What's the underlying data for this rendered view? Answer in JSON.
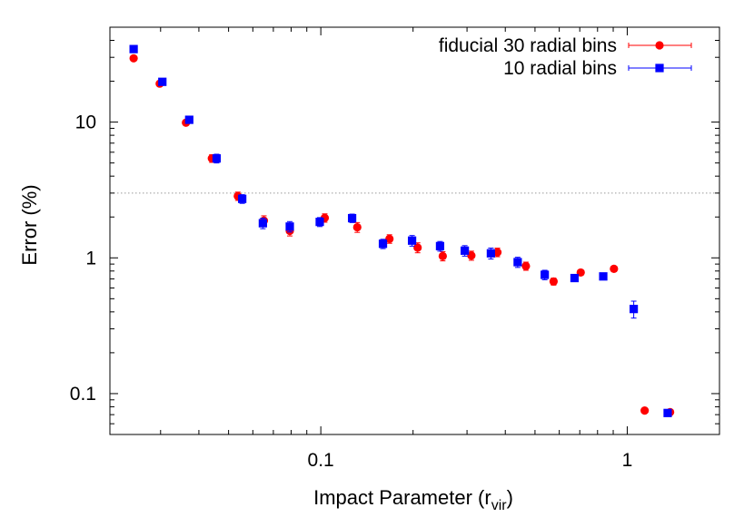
{
  "chart_data": {
    "type": "scatter",
    "xlabel": "Impact Parameter (r",
    "xlabel_sub": "vir",
    "xlabel_close": ")",
    "ylabel": "Error (%)",
    "x_scale": "log",
    "y_scale": "log",
    "xlim": [
      0.0205,
      2.0
    ],
    "ylim": [
      0.05,
      50
    ],
    "x_ticks": [
      {
        "value": 0.1,
        "label": "0.1"
      },
      {
        "value": 1,
        "label": "1"
      }
    ],
    "y_ticks": [
      {
        "value": 0.1,
        "label": "0.1"
      },
      {
        "value": 1,
        "label": "1"
      },
      {
        "value": 10,
        "label": "10"
      }
    ],
    "reference_line": {
      "y": 3.0,
      "style": "dotted",
      "color": "#999999"
    },
    "legend_position": "top-right",
    "grid": false,
    "series": [
      {
        "name": "fiducial 30 radial bins",
        "marker": "circle",
        "color": "#ff0000",
        "points": [
          {
            "x": 0.0245,
            "y": 29.5,
            "err": 0
          },
          {
            "x": 0.0298,
            "y": 19.2,
            "err": 0
          },
          {
            "x": 0.0363,
            "y": 9.9,
            "err": 0
          },
          {
            "x": 0.0441,
            "y": 5.4,
            "err": 0.35
          },
          {
            "x": 0.0536,
            "y": 2.85,
            "err": 0.2
          },
          {
            "x": 0.0652,
            "y": 1.88,
            "err": 0.16
          },
          {
            "x": 0.0792,
            "y": 1.58,
            "err": 0.13
          },
          {
            "x": 0.103,
            "y": 1.97,
            "err": 0.14
          },
          {
            "x": 0.1315,
            "y": 1.68,
            "err": 0.14
          },
          {
            "x": 0.1675,
            "y": 1.38,
            "err": 0.1
          },
          {
            "x": 0.207,
            "y": 1.19,
            "err": 0.1
          },
          {
            "x": 0.25,
            "y": 1.03,
            "err": 0.08
          },
          {
            "x": 0.31,
            "y": 1.04,
            "err": 0.08
          },
          {
            "x": 0.377,
            "y": 1.1,
            "err": 0.08
          },
          {
            "x": 0.467,
            "y": 0.87,
            "err": 0.06
          },
          {
            "x": 0.575,
            "y": 0.67,
            "err": 0.04
          },
          {
            "x": 0.705,
            "y": 0.78,
            "err": 0.03
          },
          {
            "x": 0.905,
            "y": 0.83,
            "err": 0
          },
          {
            "x": 1.14,
            "y": 0.075,
            "err": 0
          },
          {
            "x": 1.38,
            "y": 0.073,
            "err": 0
          }
        ]
      },
      {
        "name": "10 radial bins",
        "marker": "square",
        "color": "#0000ff",
        "points": [
          {
            "x": 0.0245,
            "y": 34.5,
            "err": 0
          },
          {
            "x": 0.0304,
            "y": 19.8,
            "err": 0
          },
          {
            "x": 0.0372,
            "y": 10.4,
            "err": 0
          },
          {
            "x": 0.0457,
            "y": 5.4,
            "err": 0.4
          },
          {
            "x": 0.0554,
            "y": 2.72,
            "err": 0.2
          },
          {
            "x": 0.0647,
            "y": 1.8,
            "err": 0.16
          },
          {
            "x": 0.0792,
            "y": 1.7,
            "err": 0.15
          },
          {
            "x": 0.0992,
            "y": 1.84,
            "err": 0.14
          },
          {
            "x": 0.1265,
            "y": 1.96,
            "err": 0.14
          },
          {
            "x": 0.1595,
            "y": 1.27,
            "err": 0.1
          },
          {
            "x": 0.1985,
            "y": 1.34,
            "err": 0.12
          },
          {
            "x": 0.245,
            "y": 1.22,
            "err": 0.1
          },
          {
            "x": 0.295,
            "y": 1.13,
            "err": 0.1
          },
          {
            "x": 0.359,
            "y": 1.08,
            "err": 0.1
          },
          {
            "x": 0.439,
            "y": 0.93,
            "err": 0.08
          },
          {
            "x": 0.538,
            "y": 0.75,
            "err": 0.06
          },
          {
            "x": 0.673,
            "y": 0.71,
            "err": 0.03
          },
          {
            "x": 0.835,
            "y": 0.73,
            "err": 0.03
          },
          {
            "x": 1.05,
            "y": 0.42,
            "err": 0.06
          },
          {
            "x": 1.355,
            "y": 0.072,
            "err": 0
          }
        ]
      }
    ]
  }
}
